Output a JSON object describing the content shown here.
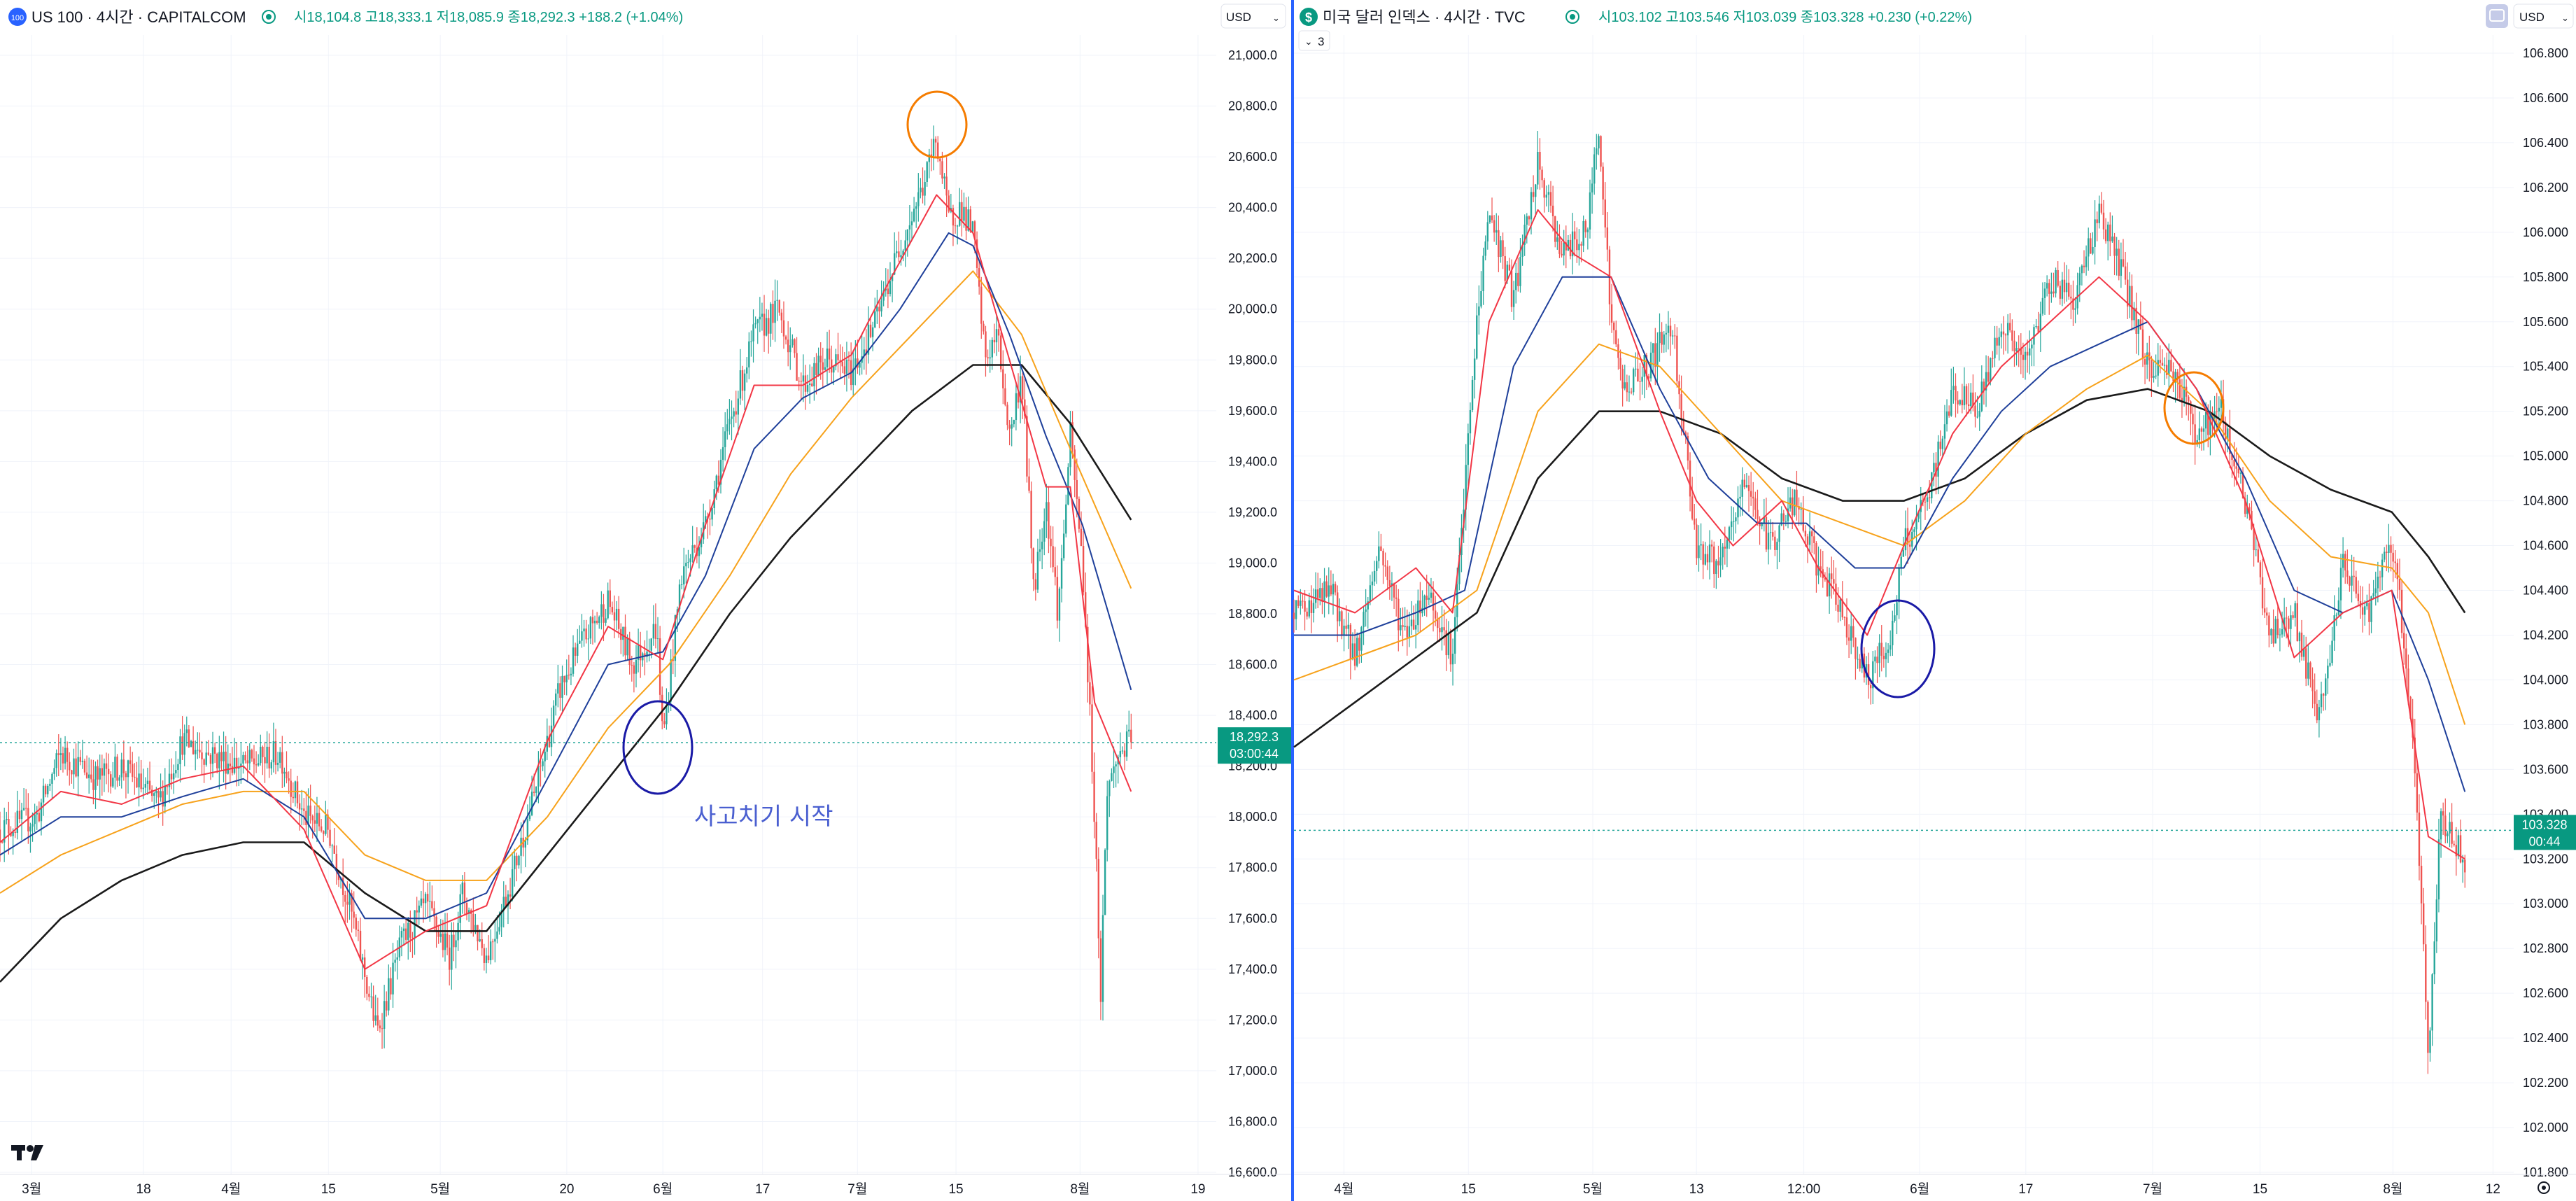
{
  "colors": {
    "up": "#26a69a",
    "down": "#ef5350",
    "ma_red": "#f23645",
    "ma_blue": "#1e3f9a",
    "ma_orange": "#f7a21b",
    "ma_black": "#1a1a1a",
    "circle_orange": "#f57c00",
    "circle_blue": "#1a1aa6",
    "badge": "#089981",
    "divider": "#2962ff"
  },
  "left_panel": {
    "symbol_badge": "100",
    "title": "US 100 · 4시간 · CAPITALCOM",
    "ohlc": "시18,104.8  고18,333.1  저18,085.9  종18,292.3  +188.2 (+1.04%)",
    "currency": "USD",
    "price_badge": "18,292.3",
    "countdown": "03:00:44",
    "annotation": "사고치기 시작",
    "logo": "TV-logo-icon"
  },
  "right_panel": {
    "symbol_badge": "$",
    "title": "미국 달러 인덱스 · 4시간 · TVC",
    "ohlc": "시103.102  고103.546  저103.039  종103.328  +0.230 (+0.22%)",
    "currency": "USD",
    "indicator_toggle": "3",
    "price_badge": "103.328",
    "countdown": "00:44"
  },
  "chart_data": [
    {
      "type": "candlestick",
      "title": "US 100 · 4시간 · CAPITALCOM",
      "ylim": [
        16600,
        21100
      ],
      "y_ticks": [
        "21,000.0",
        "20,800.0",
        "20,600.0",
        "20,400.0",
        "20,200.0",
        "20,000.0",
        "19,800.0",
        "19,600.0",
        "19,400.0",
        "19,200.0",
        "19,000.0",
        "18,800.0",
        "18,600.0",
        "18,400.0",
        "18,200.0",
        "18,000.0",
        "17,800.0",
        "17,600.0",
        "17,400.0",
        "17,200.0",
        "17,000.0",
        "16,800.0",
        "16,600.0"
      ],
      "y_tick_values": [
        21000,
        20800,
        20600,
        20400,
        20200,
        20000,
        19800,
        19600,
        19400,
        19200,
        19000,
        18800,
        18600,
        18400,
        18200,
        18000,
        17800,
        17600,
        17400,
        17200,
        17000,
        16800,
        16600
      ],
      "x_ticks": [
        "3월",
        "18",
        "4월",
        "15",
        "5월",
        "20",
        "6월",
        "17",
        "7월",
        "15",
        "8월",
        "19"
      ],
      "x_tick_pos": [
        0.026,
        0.118,
        0.19,
        0.27,
        0.362,
        0.466,
        0.545,
        0.627,
        0.705,
        0.786,
        0.888,
        0.985
      ],
      "last_price": 18292.3,
      "price_path": [
        [
          0,
          17950
        ],
        [
          0.03,
          18000
        ],
        [
          0.05,
          18250
        ],
        [
          0.08,
          18150
        ],
        [
          0.1,
          18200
        ],
        [
          0.13,
          18050
        ],
        [
          0.15,
          18300
        ],
        [
          0.17,
          18250
        ],
        [
          0.2,
          18200
        ],
        [
          0.23,
          18250
        ],
        [
          0.25,
          18000
        ],
        [
          0.27,
          17950
        ],
        [
          0.29,
          17600
        ],
        [
          0.31,
          17150
        ],
        [
          0.33,
          17500
        ],
        [
          0.35,
          17650
        ],
        [
          0.37,
          17450
        ],
        [
          0.38,
          17700
        ],
        [
          0.4,
          17450
        ],
        [
          0.42,
          17750
        ],
        [
          0.44,
          18100
        ],
        [
          0.46,
          18500
        ],
        [
          0.48,
          18700
        ],
        [
          0.5,
          18850
        ],
        [
          0.52,
          18600
        ],
        [
          0.54,
          18750
        ],
        [
          0.545,
          18300
        ],
        [
          0.56,
          18950
        ],
        [
          0.58,
          19150
        ],
        [
          0.6,
          19550
        ],
        [
          0.62,
          19900
        ],
        [
          0.64,
          20000
        ],
        [
          0.66,
          19700
        ],
        [
          0.68,
          19800
        ],
        [
          0.7,
          19750
        ],
        [
          0.72,
          19950
        ],
        [
          0.74,
          20250
        ],
        [
          0.76,
          20500
        ],
        [
          0.77,
          20680
        ],
        [
          0.78,
          20350
        ],
        [
          0.79,
          20400
        ],
        [
          0.8,
          20300
        ],
        [
          0.81,
          19800
        ],
        [
          0.82,
          19900
        ],
        [
          0.83,
          19500
        ],
        [
          0.84,
          19750
        ],
        [
          0.85,
          18900
        ],
        [
          0.86,
          19250
        ],
        [
          0.87,
          18800
        ],
        [
          0.88,
          19500
        ],
        [
          0.89,
          19000
        ],
        [
          0.9,
          18000
        ],
        [
          0.905,
          17300
        ],
        [
          0.91,
          18100
        ],
        [
          0.92,
          18250
        ],
        [
          0.93,
          18300
        ]
      ],
      "ma_red": [
        [
          0,
          17900
        ],
        [
          0.05,
          18100
        ],
        [
          0.1,
          18050
        ],
        [
          0.15,
          18150
        ],
        [
          0.2,
          18200
        ],
        [
          0.25,
          17950
        ],
        [
          0.3,
          17400
        ],
        [
          0.35,
          17550
        ],
        [
          0.4,
          17650
        ],
        [
          0.45,
          18300
        ],
        [
          0.5,
          18750
        ],
        [
          0.545,
          18620
        ],
        [
          0.58,
          19150
        ],
        [
          0.62,
          19700
        ],
        [
          0.66,
          19700
        ],
        [
          0.7,
          19820
        ],
        [
          0.73,
          20100
        ],
        [
          0.77,
          20450
        ],
        [
          0.8,
          20300
        ],
        [
          0.83,
          19800
        ],
        [
          0.86,
          19300
        ],
        [
          0.88,
          19300
        ],
        [
          0.9,
          18450
        ],
        [
          0.93,
          18100
        ]
      ],
      "ma_blue": [
        [
          0,
          17850
        ],
        [
          0.05,
          18000
        ],
        [
          0.1,
          18000
        ],
        [
          0.15,
          18080
        ],
        [
          0.2,
          18150
        ],
        [
          0.25,
          18000
        ],
        [
          0.3,
          17600
        ],
        [
          0.35,
          17600
        ],
        [
          0.4,
          17700
        ],
        [
          0.45,
          18150
        ],
        [
          0.5,
          18600
        ],
        [
          0.545,
          18650
        ],
        [
          0.58,
          18950
        ],
        [
          0.62,
          19450
        ],
        [
          0.66,
          19650
        ],
        [
          0.7,
          19750
        ],
        [
          0.74,
          20000
        ],
        [
          0.78,
          20300
        ],
        [
          0.8,
          20250
        ],
        [
          0.83,
          19900
        ],
        [
          0.86,
          19500
        ],
        [
          0.89,
          19150
        ],
        [
          0.93,
          18500
        ]
      ],
      "ma_orange": [
        [
          0,
          17700
        ],
        [
          0.05,
          17850
        ],
        [
          0.1,
          17950
        ],
        [
          0.15,
          18050
        ],
        [
          0.2,
          18100
        ],
        [
          0.25,
          18100
        ],
        [
          0.3,
          17850
        ],
        [
          0.35,
          17750
        ],
        [
          0.4,
          17750
        ],
        [
          0.45,
          18000
        ],
        [
          0.5,
          18350
        ],
        [
          0.55,
          18600
        ],
        [
          0.6,
          18950
        ],
        [
          0.65,
          19350
        ],
        [
          0.7,
          19650
        ],
        [
          0.75,
          19900
        ],
        [
          0.8,
          20150
        ],
        [
          0.84,
          19900
        ],
        [
          0.88,
          19450
        ],
        [
          0.93,
          18900
        ]
      ],
      "ma_black": [
        [
          0,
          17350
        ],
        [
          0.05,
          17600
        ],
        [
          0.1,
          17750
        ],
        [
          0.15,
          17850
        ],
        [
          0.2,
          17900
        ],
        [
          0.25,
          17900
        ],
        [
          0.3,
          17700
        ],
        [
          0.35,
          17550
        ],
        [
          0.4,
          17550
        ],
        [
          0.45,
          17850
        ],
        [
          0.5,
          18150
        ],
        [
          0.55,
          18450
        ],
        [
          0.6,
          18800
        ],
        [
          0.65,
          19100
        ],
        [
          0.7,
          19350
        ],
        [
          0.75,
          19600
        ],
        [
          0.8,
          19780
        ],
        [
          0.84,
          19780
        ],
        [
          0.88,
          19550
        ],
        [
          0.93,
          19170
        ]
      ]
    },
    {
      "type": "candlestick",
      "title": "미국 달러 인덱스 · 4시간 · TVC",
      "ylim": [
        101.8,
        106.9
      ],
      "y_ticks": [
        "106.800",
        "106.600",
        "106.400",
        "106.200",
        "106.000",
        "105.800",
        "105.600",
        "105.400",
        "105.200",
        "105.000",
        "104.800",
        "104.600",
        "104.400",
        "104.200",
        "104.000",
        "103.800",
        "103.600",
        "103.400",
        "103.200",
        "103.000",
        "102.800",
        "102.600",
        "102.400",
        "102.200",
        "102.000",
        "101.800"
      ],
      "y_tick_values": [
        106.8,
        106.6,
        106.4,
        106.2,
        106.0,
        105.8,
        105.6,
        105.4,
        105.2,
        105.0,
        104.8,
        104.6,
        104.4,
        104.2,
        104.0,
        103.8,
        103.6,
        103.4,
        103.2,
        103.0,
        102.8,
        102.6,
        102.4,
        102.2,
        102.0,
        101.8
      ],
      "x_ticks": [
        "4월",
        "15",
        "5월",
        "13",
        "12:00",
        "6월",
        "17",
        "7월",
        "15",
        "8월",
        "12"
      ],
      "x_tick_pos": [
        0.041,
        0.143,
        0.245,
        0.33,
        0.418,
        0.513,
        0.6,
        0.704,
        0.792,
        0.901,
        0.983
      ],
      "last_price": 103.328,
      "price_path": [
        [
          0,
          104.3
        ],
        [
          0.03,
          104.4
        ],
        [
          0.05,
          104.1
        ],
        [
          0.07,
          104.6
        ],
        [
          0.09,
          104.2
        ],
        [
          0.11,
          104.4
        ],
        [
          0.13,
          104.1
        ],
        [
          0.15,
          105.6
        ],
        [
          0.16,
          106.1
        ],
        [
          0.18,
          105.7
        ],
        [
          0.2,
          106.3
        ],
        [
          0.22,
          105.9
        ],
        [
          0.24,
          106.0
        ],
        [
          0.25,
          106.5
        ],
        [
          0.26,
          105.6
        ],
        [
          0.27,
          105.3
        ],
        [
          0.29,
          105.4
        ],
        [
          0.31,
          105.6
        ],
        [
          0.33,
          104.6
        ],
        [
          0.35,
          104.5
        ],
        [
          0.37,
          104.9
        ],
        [
          0.39,
          104.6
        ],
        [
          0.41,
          104.8
        ],
        [
          0.43,
          104.5
        ],
        [
          0.45,
          104.3
        ],
        [
          0.47,
          104.0
        ],
        [
          0.49,
          104.2
        ],
        [
          0.5,
          104.6
        ],
        [
          0.52,
          104.8
        ],
        [
          0.54,
          105.3
        ],
        [
          0.56,
          105.2
        ],
        [
          0.58,
          105.6
        ],
        [
          0.6,
          105.4
        ],
        [
          0.62,
          105.8
        ],
        [
          0.64,
          105.7
        ],
        [
          0.66,
          106.1
        ],
        [
          0.68,
          105.8
        ],
        [
          0.7,
          105.4
        ],
        [
          0.72,
          105.4
        ],
        [
          0.74,
          105.1
        ],
        [
          0.76,
          105.2
        ],
        [
          0.78,
          104.8
        ],
        [
          0.8,
          104.2
        ],
        [
          0.82,
          104.3
        ],
        [
          0.84,
          103.8
        ],
        [
          0.86,
          104.5
        ],
        [
          0.88,
          104.3
        ],
        [
          0.9,
          104.6
        ],
        [
          0.91,
          104.2
        ],
        [
          0.92,
          103.5
        ],
        [
          0.93,
          102.3
        ],
        [
          0.94,
          103.4
        ],
        [
          0.95,
          103.3
        ],
        [
          0.96,
          103.2
        ]
      ],
      "ma_red": [
        [
          0,
          104.4
        ],
        [
          0.05,
          104.3
        ],
        [
          0.1,
          104.5
        ],
        [
          0.13,
          104.3
        ],
        [
          0.16,
          105.6
        ],
        [
          0.2,
          106.1
        ],
        [
          0.23,
          105.9
        ],
        [
          0.26,
          105.8
        ],
        [
          0.3,
          105.2
        ],
        [
          0.33,
          104.8
        ],
        [
          0.36,
          104.6
        ],
        [
          0.4,
          104.8
        ],
        [
          0.43,
          104.5
        ],
        [
          0.47,
          104.2
        ],
        [
          0.5,
          104.6
        ],
        [
          0.54,
          105.1
        ],
        [
          0.58,
          105.4
        ],
        [
          0.62,
          105.6
        ],
        [
          0.66,
          105.8
        ],
        [
          0.7,
          105.6
        ],
        [
          0.74,
          105.3
        ],
        [
          0.78,
          104.8
        ],
        [
          0.82,
          104.1
        ],
        [
          0.86,
          104.3
        ],
        [
          0.9,
          104.4
        ],
        [
          0.93,
          103.3
        ],
        [
          0.96,
          103.2
        ]
      ],
      "ma_blue": [
        [
          0,
          104.2
        ],
        [
          0.05,
          104.2
        ],
        [
          0.1,
          104.3
        ],
        [
          0.14,
          104.4
        ],
        [
          0.18,
          105.4
        ],
        [
          0.22,
          105.8
        ],
        [
          0.26,
          105.8
        ],
        [
          0.3,
          105.3
        ],
        [
          0.34,
          104.9
        ],
        [
          0.38,
          104.7
        ],
        [
          0.42,
          104.7
        ],
        [
          0.46,
          104.5
        ],
        [
          0.5,
          104.5
        ],
        [
          0.54,
          104.9
        ],
        [
          0.58,
          105.2
        ],
        [
          0.62,
          105.4
        ],
        [
          0.66,
          105.5
        ],
        [
          0.7,
          105.6
        ],
        [
          0.74,
          105.3
        ],
        [
          0.78,
          104.9
        ],
        [
          0.82,
          104.4
        ],
        [
          0.86,
          104.3
        ],
        [
          0.9,
          104.4
        ],
        [
          0.93,
          104.0
        ],
        [
          0.96,
          103.5
        ]
      ],
      "ma_orange": [
        [
          0,
          104.0
        ],
        [
          0.05,
          104.1
        ],
        [
          0.1,
          104.2
        ],
        [
          0.15,
          104.4
        ],
        [
          0.2,
          105.2
        ],
        [
          0.25,
          105.5
        ],
        [
          0.3,
          105.4
        ],
        [
          0.35,
          105.1
        ],
        [
          0.4,
          104.8
        ],
        [
          0.45,
          104.7
        ],
        [
          0.5,
          104.6
        ],
        [
          0.55,
          104.8
        ],
        [
          0.6,
          105.1
        ],
        [
          0.65,
          105.3
        ],
        [
          0.7,
          105.45
        ],
        [
          0.75,
          105.2
        ],
        [
          0.8,
          104.8
        ],
        [
          0.85,
          104.55
        ],
        [
          0.9,
          104.5
        ],
        [
          0.93,
          104.3
        ],
        [
          0.96,
          103.8
        ]
      ],
      "ma_black": [
        [
          0,
          103.7
        ],
        [
          0.05,
          103.9
        ],
        [
          0.1,
          104.1
        ],
        [
          0.15,
          104.3
        ],
        [
          0.2,
          104.9
        ],
        [
          0.25,
          105.2
        ],
        [
          0.3,
          105.2
        ],
        [
          0.35,
          105.1
        ],
        [
          0.4,
          104.9
        ],
        [
          0.45,
          104.8
        ],
        [
          0.5,
          104.8
        ],
        [
          0.55,
          104.9
        ],
        [
          0.6,
          105.1
        ],
        [
          0.65,
          105.25
        ],
        [
          0.7,
          105.3
        ],
        [
          0.75,
          105.2
        ],
        [
          0.8,
          105.0
        ],
        [
          0.85,
          104.85
        ],
        [
          0.9,
          104.75
        ],
        [
          0.93,
          104.55
        ],
        [
          0.96,
          104.3
        ]
      ]
    }
  ]
}
